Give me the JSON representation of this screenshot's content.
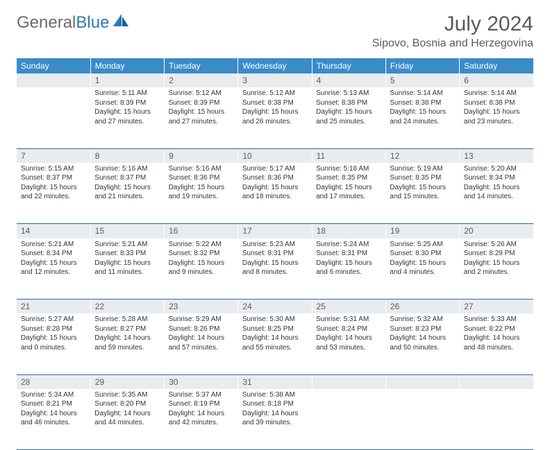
{
  "logo": {
    "text1": "General",
    "text2": "Blue"
  },
  "title": "July 2024",
  "location": "Sipovo, Bosnia and Herzegovina",
  "colors": {
    "header_bg": "#3b8bc9",
    "daynum_bg": "#e9ecef",
    "row_divider": "#2a6aa0",
    "text": "#333333",
    "title_text": "#5a5a5a",
    "logo_gray": "#6b6b6b",
    "logo_blue": "#2a7ab8"
  },
  "weekdays": [
    "Sunday",
    "Monday",
    "Tuesday",
    "Wednesday",
    "Thursday",
    "Friday",
    "Saturday"
  ],
  "first_weekday_offset": 1,
  "days": [
    {
      "n": 1,
      "sunrise": "5:11 AM",
      "sunset": "8:39 PM",
      "dl_h": 15,
      "dl_m": 27
    },
    {
      "n": 2,
      "sunrise": "5:12 AM",
      "sunset": "8:39 PM",
      "dl_h": 15,
      "dl_m": 27
    },
    {
      "n": 3,
      "sunrise": "5:12 AM",
      "sunset": "8:38 PM",
      "dl_h": 15,
      "dl_m": 26
    },
    {
      "n": 4,
      "sunrise": "5:13 AM",
      "sunset": "8:38 PM",
      "dl_h": 15,
      "dl_m": 25
    },
    {
      "n": 5,
      "sunrise": "5:14 AM",
      "sunset": "8:38 PM",
      "dl_h": 15,
      "dl_m": 24
    },
    {
      "n": 6,
      "sunrise": "5:14 AM",
      "sunset": "8:38 PM",
      "dl_h": 15,
      "dl_m": 23
    },
    {
      "n": 7,
      "sunrise": "5:15 AM",
      "sunset": "8:37 PM",
      "dl_h": 15,
      "dl_m": 22
    },
    {
      "n": 8,
      "sunrise": "5:16 AM",
      "sunset": "8:37 PM",
      "dl_h": 15,
      "dl_m": 21
    },
    {
      "n": 9,
      "sunrise": "5:16 AM",
      "sunset": "8:36 PM",
      "dl_h": 15,
      "dl_m": 19
    },
    {
      "n": 10,
      "sunrise": "5:17 AM",
      "sunset": "8:36 PM",
      "dl_h": 15,
      "dl_m": 18
    },
    {
      "n": 11,
      "sunrise": "5:18 AM",
      "sunset": "8:35 PM",
      "dl_h": 15,
      "dl_m": 17
    },
    {
      "n": 12,
      "sunrise": "5:19 AM",
      "sunset": "8:35 PM",
      "dl_h": 15,
      "dl_m": 15
    },
    {
      "n": 13,
      "sunrise": "5:20 AM",
      "sunset": "8:34 PM",
      "dl_h": 15,
      "dl_m": 14
    },
    {
      "n": 14,
      "sunrise": "5:21 AM",
      "sunset": "8:34 PM",
      "dl_h": 15,
      "dl_m": 12
    },
    {
      "n": 15,
      "sunrise": "5:21 AM",
      "sunset": "8:33 PM",
      "dl_h": 15,
      "dl_m": 11
    },
    {
      "n": 16,
      "sunrise": "5:22 AM",
      "sunset": "8:32 PM",
      "dl_h": 15,
      "dl_m": 9
    },
    {
      "n": 17,
      "sunrise": "5:23 AM",
      "sunset": "8:31 PM",
      "dl_h": 15,
      "dl_m": 8
    },
    {
      "n": 18,
      "sunrise": "5:24 AM",
      "sunset": "8:31 PM",
      "dl_h": 15,
      "dl_m": 6
    },
    {
      "n": 19,
      "sunrise": "5:25 AM",
      "sunset": "8:30 PM",
      "dl_h": 15,
      "dl_m": 4
    },
    {
      "n": 20,
      "sunrise": "5:26 AM",
      "sunset": "8:29 PM",
      "dl_h": 15,
      "dl_m": 2
    },
    {
      "n": 21,
      "sunrise": "5:27 AM",
      "sunset": "8:28 PM",
      "dl_h": 15,
      "dl_m": 0
    },
    {
      "n": 22,
      "sunrise": "5:28 AM",
      "sunset": "8:27 PM",
      "dl_h": 14,
      "dl_m": 59
    },
    {
      "n": 23,
      "sunrise": "5:29 AM",
      "sunset": "8:26 PM",
      "dl_h": 14,
      "dl_m": 57
    },
    {
      "n": 24,
      "sunrise": "5:30 AM",
      "sunset": "8:25 PM",
      "dl_h": 14,
      "dl_m": 55
    },
    {
      "n": 25,
      "sunrise": "5:31 AM",
      "sunset": "8:24 PM",
      "dl_h": 14,
      "dl_m": 53
    },
    {
      "n": 26,
      "sunrise": "5:32 AM",
      "sunset": "8:23 PM",
      "dl_h": 14,
      "dl_m": 50
    },
    {
      "n": 27,
      "sunrise": "5:33 AM",
      "sunset": "8:22 PM",
      "dl_h": 14,
      "dl_m": 48
    },
    {
      "n": 28,
      "sunrise": "5:34 AM",
      "sunset": "8:21 PM",
      "dl_h": 14,
      "dl_m": 46
    },
    {
      "n": 29,
      "sunrise": "5:35 AM",
      "sunset": "8:20 PM",
      "dl_h": 14,
      "dl_m": 44
    },
    {
      "n": 30,
      "sunrise": "5:37 AM",
      "sunset": "8:19 PM",
      "dl_h": 14,
      "dl_m": 42
    },
    {
      "n": 31,
      "sunrise": "5:38 AM",
      "sunset": "8:18 PM",
      "dl_h": 14,
      "dl_m": 39
    }
  ]
}
